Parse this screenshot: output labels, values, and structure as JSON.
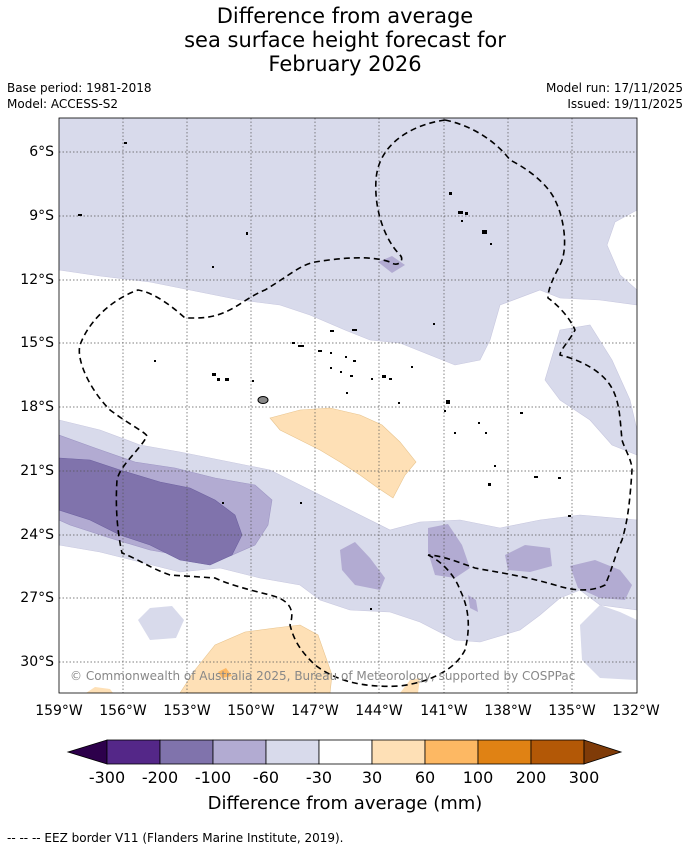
{
  "header": {
    "title_lines": [
      "Difference from average",
      "sea surface height forecast for",
      "February 2026"
    ],
    "base_period": "Base period: 1981-2018",
    "model": "Model: ACCESS-S2",
    "model_run": "Model run: 17/11/2025",
    "issued": "Issued: 19/11/2025"
  },
  "map": {
    "lat_ticks": [
      "6°S",
      "9°S",
      "12°S",
      "15°S",
      "18°S",
      "21°S",
      "24°S",
      "27°S",
      "30°S"
    ],
    "lon_ticks": [
      "159°W",
      "156°W",
      "153°W",
      "150°W",
      "147°W",
      "144°W",
      "141°W",
      "138°W",
      "135°W",
      "132°W"
    ],
    "copyright": "© Commonwealth of Australia 2025, Bureau of Meteorology, supported by COSPPac"
  },
  "colorbar": {
    "labels": [
      "-300",
      "-200",
      "-100",
      "-60",
      "-30",
      "30",
      "60",
      "100",
      "200",
      "300"
    ],
    "colors": [
      "#2d004b",
      "#542788",
      "#8073ac",
      "#b2abd2",
      "#d8daeb",
      "#ffffff",
      "#fee0b6",
      "#fdb863",
      "#e08214",
      "#b35806",
      "#7f3b08"
    ],
    "title": "Difference from average (mm)"
  },
  "footer": {
    "legend": "--  --  -- EEZ border V11 (Flanders Marine Institute, 2019)."
  }
}
